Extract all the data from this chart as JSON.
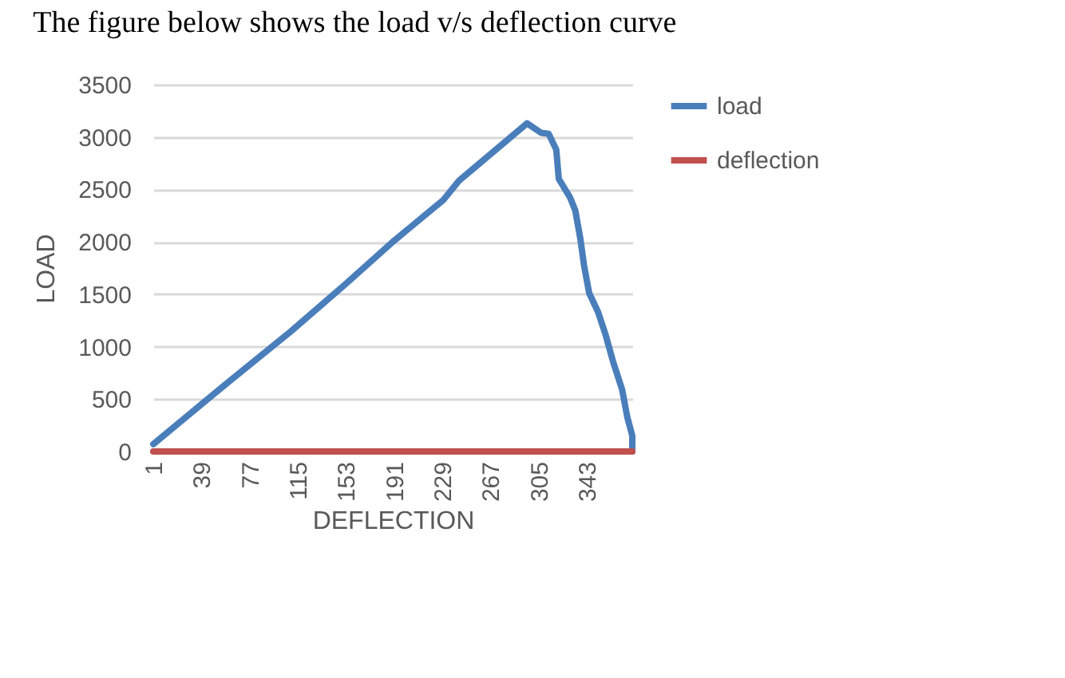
{
  "chart_data": {
    "type": "line",
    "title": "The figure below shows the load v/s deflection curve",
    "xlabel": "DEFLECTION",
    "ylabel": "LOAD",
    "xlim": [
      1,
      379
    ],
    "xticks": [
      1,
      39,
      77,
      115,
      153,
      191,
      229,
      267,
      305,
      343
    ],
    "ylim": [
      0,
      3500
    ],
    "yticks": [
      0,
      500,
      1000,
      1500,
      2000,
      2500,
      3000,
      3500
    ],
    "grid": "y",
    "legend": "right",
    "series": [
      {
        "name": "load",
        "color": "#4a7ebb",
        "x": [
          1,
          59,
          110,
          153,
          191,
          230,
          242,
          296,
          307,
          313,
          319,
          321,
          330,
          334,
          338,
          341,
          345,
          352,
          358,
          364,
          371,
          375,
          379,
          379
        ],
        "values": [
          70,
          650,
          1150,
          1600,
          2010,
          2400,
          2580,
          3130,
          3040,
          3030,
          2880,
          2600,
          2420,
          2300,
          2030,
          1770,
          1510,
          1330,
          1110,
          850,
          590,
          330,
          150,
          0
        ]
      },
      {
        "name": "deflection",
        "color": "#c0504d",
        "x": [
          1,
          379
        ],
        "values": [
          0,
          0
        ]
      }
    ]
  }
}
